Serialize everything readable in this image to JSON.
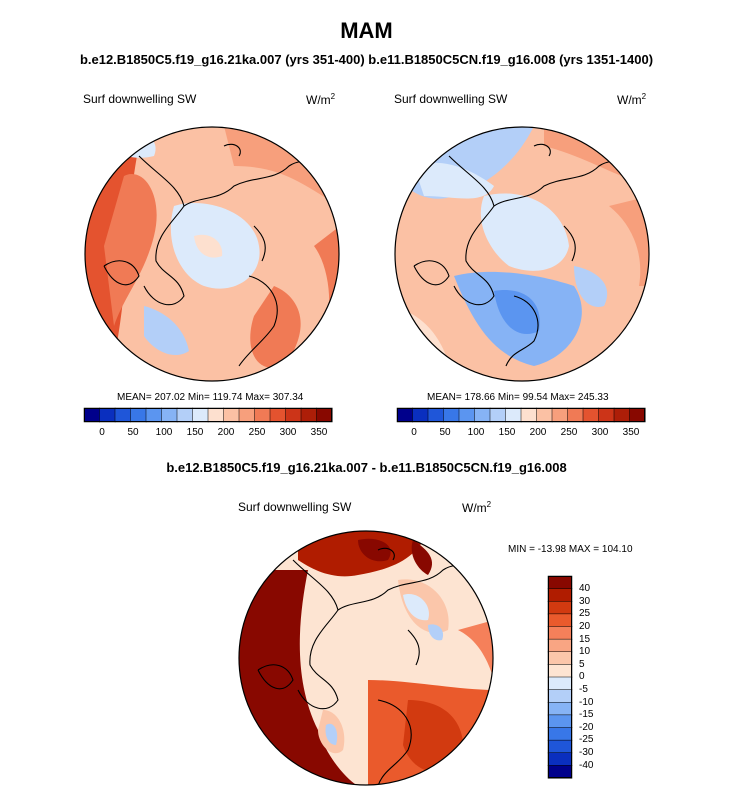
{
  "header": {
    "title": "MAM",
    "subtitle": "b.e12.B1850C5.f19_g16.21ka.007 (yrs 351-400) b.e11.B1850C5CN.f19_g16.008 (yrs 1351-1400)",
    "diff_title": "b.e12.B1850C5.f19_g16.21ka.007 - b.e11.B1850C5CN.f19_g16.008"
  },
  "panels": [
    {
      "variable": "Surf downwelling SW",
      "units_base": "W/m",
      "units_exp": "2",
      "stats": "MEAN= 207.02  Min= 119.74  Max= 307.34"
    },
    {
      "variable": "Surf downwelling SW",
      "units_base": "W/m",
      "units_exp": "2",
      "stats": "MEAN= 178.66  Min= 99.54  Max= 245.33"
    }
  ],
  "diff_panel": {
    "variable": "Surf downwelling SW",
    "units_base": "W/m",
    "units_exp": "2",
    "stats": "MIN = -13.98 MAX = 104.10"
  },
  "colorbar_h": {
    "colors": [
      "#00008b",
      "#0a2fbf",
      "#1f56d9",
      "#3877e8",
      "#5b95f0",
      "#86b3f5",
      "#b3cff8",
      "#dceafb",
      "#fde0cf",
      "#fbc1a4",
      "#f79f7c",
      "#f07a55",
      "#e4532f",
      "#cc3418",
      "#ad1e08",
      "#880800"
    ],
    "tick_labels": [
      "0",
      "50",
      "100",
      "150",
      "200",
      "250",
      "300",
      "350"
    ]
  },
  "colorbar_v": {
    "colors": [
      "#880800",
      "#b01c00",
      "#d23a10",
      "#ea5a2c",
      "#f5805a",
      "#f9a583",
      "#fbc6aa",
      "#fde4d2",
      "#dceafb",
      "#b3cff8",
      "#86b3f5",
      "#5b95f0",
      "#3877e8",
      "#1f56d9",
      "#0a2fbf",
      "#00008b"
    ],
    "tick_labels": [
      "40",
      "30",
      "25",
      "20",
      "15",
      "10",
      "5",
      "0",
      "-5",
      "-10",
      "-15",
      "-20",
      "-25",
      "-30",
      "-40"
    ]
  }
}
